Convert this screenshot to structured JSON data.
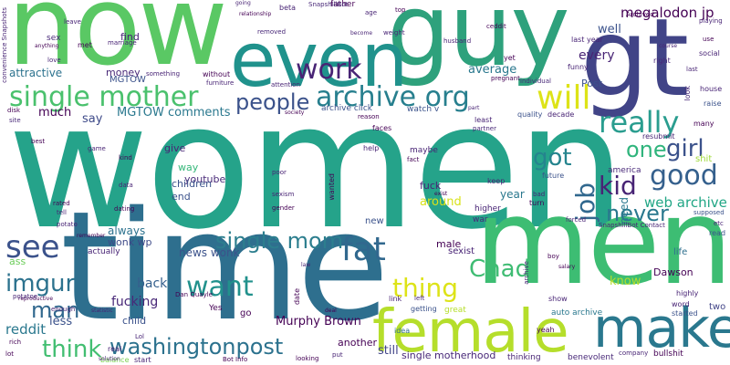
{
  "words": [
    {
      "text": "women",
      "color": "#25a38a"
    },
    {
      "text": "time",
      "color": "#2e6f8e"
    },
    {
      "text": "men",
      "color": "#3dbd73"
    },
    {
      "text": "guy",
      "color": "#2ea17c"
    },
    {
      "text": "now",
      "color": "#5ac864"
    },
    {
      "text": "even",
      "color": "#20928c"
    },
    {
      "text": "gt",
      "color": "#414487"
    },
    {
      "text": "female",
      "color": "#b5de2b"
    },
    {
      "text": "make",
      "color": "#2a788e"
    },
    {
      "text": "single mother",
      "color": "#4ac16d"
    },
    {
      "text": "archive org",
      "color": "#277f8e"
    },
    {
      "text": "work",
      "color": "#482475"
    },
    {
      "text": "will",
      "color": "#dde318"
    },
    {
      "text": "really",
      "color": "#2a9d8f"
    },
    {
      "text": "people",
      "color": "#3b528b"
    },
    {
      "text": "fat",
      "color": "#31688e"
    },
    {
      "text": "see",
      "color": "#3b528b"
    },
    {
      "text": "good",
      "color": "#35608d"
    },
    {
      "text": "single mom",
      "color": "#2c7e8e"
    },
    {
      "text": "thing",
      "color": "#dde318"
    },
    {
      "text": "washingtonpost",
      "color": "#2c728e"
    },
    {
      "text": "want",
      "color": "#21918c"
    },
    {
      "text": "Chad",
      "color": "#3fbc73"
    },
    {
      "text": "girl",
      "color": "#3b528b"
    },
    {
      "text": "one",
      "color": "#2fb47c"
    },
    {
      "text": "job",
      "color": "#31688e"
    },
    {
      "text": "got",
      "color": "#25848e"
    },
    {
      "text": "kid",
      "color": "#482475"
    },
    {
      "text": "never",
      "color": "#2a788e"
    },
    {
      "text": "think",
      "color": "#42be71"
    },
    {
      "text": "man",
      "color": "#31688e"
    },
    {
      "text": "imgur",
      "color": "#2c728e"
    },
    {
      "text": "MGTOW comments",
      "color": "#2a788e"
    },
    {
      "text": "megalodon jp",
      "color": "#440154"
    },
    {
      "text": "Murphy Brown",
      "color": "#440154"
    },
    {
      "text": "web archive",
      "color": "#21a685"
    },
    {
      "text": "fucking",
      "color": "#482878"
    },
    {
      "text": "average",
      "color": "#2a788e"
    },
    {
      "text": "every",
      "color": "#482475"
    },
    {
      "text": "well",
      "color": "#3b528b"
    },
    {
      "text": "back",
      "color": "#35608d"
    },
    {
      "text": "much",
      "color": "#440154"
    },
    {
      "text": "say",
      "color": "#3e4a89"
    },
    {
      "text": "Post",
      "color": "#3b528b"
    },
    {
      "text": "less",
      "color": "#3b528b"
    },
    {
      "text": "reddit",
      "color": "#2a788e"
    },
    {
      "text": "year",
      "color": "#2a788e"
    },
    {
      "text": "fuck",
      "color": "#482475"
    },
    {
      "text": "male",
      "color": "#440154"
    },
    {
      "text": "news wonk",
      "color": "#3b528b"
    },
    {
      "text": "always",
      "color": "#2c728e"
    },
    {
      "text": "still",
      "color": "#414487"
    },
    {
      "text": "single motherhood",
      "color": "#482878"
    },
    {
      "text": "know",
      "color": "#b5de2b"
    },
    {
      "text": "need",
      "color": "#2a788e"
    },
    {
      "text": "around",
      "color": "#d8e219"
    },
    {
      "text": "wonk wp",
      "color": "#3e4a89"
    },
    {
      "text": "attractive",
      "color": "#2c728e"
    },
    {
      "text": "money",
      "color": "#482878"
    },
    {
      "text": "find",
      "color": "#482475"
    },
    {
      "text": "MGTOW",
      "color": "#3b528b"
    },
    {
      "text": "youtube",
      "color": "#482878"
    },
    {
      "text": "end",
      "color": "#3b528b"
    },
    {
      "text": "children",
      "color": "#3b528b"
    },
    {
      "text": "way",
      "color": "#35b779"
    },
    {
      "text": "give",
      "color": "#482475"
    },
    {
      "text": "child",
      "color": "#3b528b"
    },
    {
      "text": "another",
      "color": "#440154"
    },
    {
      "text": "sexist",
      "color": "#482475"
    },
    {
      "text": "ass",
      "color": "#6ccd5a"
    },
    {
      "text": "Dawson",
      "color": "#440154"
    },
    {
      "text": "shit",
      "color": "#9fda3a"
    },
    {
      "text": "america",
      "color": "#482878"
    },
    {
      "text": "watch v",
      "color": "#3b528b"
    },
    {
      "text": "maybe",
      "color": "#482475"
    },
    {
      "text": "Yes",
      "color": "#440154"
    },
    {
      "text": "go",
      "color": "#440154"
    },
    {
      "text": "actually",
      "color": "#482475"
    },
    {
      "text": "new",
      "color": "#3b528b"
    },
    {
      "text": "two",
      "color": "#414487"
    },
    {
      "text": "real",
      "color": "#482475"
    },
    {
      "text": "idea",
      "color": "#2e6f8e"
    },
    {
      "text": "war",
      "color": "#482878"
    },
    {
      "text": "higher",
      "color": "#482475"
    },
    {
      "text": "great",
      "color": "#b5de2b"
    },
    {
      "text": "life",
      "color": "#2e6f8e"
    },
    {
      "text": "balance",
      "color": "#7ad151"
    },
    {
      "text": "start",
      "color": "#482475"
    },
    {
      "text": "bullshit",
      "color": "#440154"
    },
    {
      "text": "auto archive",
      "color": "#2a788e"
    },
    {
      "text": "getting",
      "color": "#3b528b"
    },
    {
      "text": "thinking",
      "color": "#482475"
    },
    {
      "text": "benevolent",
      "color": "#482878"
    },
    {
      "text": "yeah",
      "color": "#440154"
    },
    {
      "text": "link",
      "color": "#482475"
    },
    {
      "text": "left",
      "color": "#482878"
    },
    {
      "text": "show",
      "color": "#482475"
    },
    {
      "text": "started",
      "color": "#3b528b"
    },
    {
      "text": "word",
      "color": "#482475"
    },
    {
      "text": "highly",
      "color": "#482475"
    },
    {
      "text": "read",
      "color": "#3b528b"
    },
    {
      "text": "etc",
      "color": "#482475"
    },
    {
      "text": "supposed",
      "color": "#3b528b"
    },
    {
      "text": "turn",
      "color": "#440154"
    },
    {
      "text": "keep",
      "color": "#482475"
    },
    {
      "text": "future",
      "color": "#3b528b"
    },
    {
      "text": "fact",
      "color": "#440154"
    },
    {
      "text": "help",
      "color": "#482475"
    },
    {
      "text": "faces",
      "color": "#440154"
    },
    {
      "text": "reason",
      "color": "#440154"
    },
    {
      "text": "least",
      "color": "#482475"
    },
    {
      "text": "partner",
      "color": "#482878"
    },
    {
      "text": "quality",
      "color": "#3b528b"
    },
    {
      "text": "decade",
      "color": "#482475"
    },
    {
      "text": "resubmit",
      "color": "#482475"
    },
    {
      "text": "many",
      "color": "#440154"
    },
    {
      "text": "raise",
      "color": "#3b528b"
    },
    {
      "text": "house",
      "color": "#482475"
    },
    {
      "text": "look",
      "color": "#482878"
    },
    {
      "text": "social",
      "color": "#482475"
    },
    {
      "text": "last",
      "color": "#482475"
    },
    {
      "text": "right",
      "color": "#482878"
    },
    {
      "text": "funny",
      "color": "#482475"
    },
    {
      "text": "last year",
      "color": "#482475"
    },
    {
      "text": "pregnant",
      "color": "#440154"
    },
    {
      "text": "individual",
      "color": "#482878"
    },
    {
      "text": "yet",
      "color": "#440154"
    },
    {
      "text": "ceddit",
      "color": "#440154"
    },
    {
      "text": "husband",
      "color": "#482475"
    },
    {
      "text": "top",
      "color": "#440154"
    },
    {
      "text": "age",
      "color": "#482475"
    },
    {
      "text": "father",
      "color": "#440154"
    },
    {
      "text": "SnapshillBot",
      "color": "#482878"
    },
    {
      "text": "beta",
      "color": "#482475"
    },
    {
      "text": "relationship",
      "color": "#440154"
    },
    {
      "text": "removed",
      "color": "#482878"
    },
    {
      "text": "weight",
      "color": "#482475"
    },
    {
      "text": "become",
      "color": "#482475"
    },
    {
      "text": "attention",
      "color": "#482475"
    },
    {
      "text": "without",
      "color": "#440154"
    },
    {
      "text": "furniture",
      "color": "#482475"
    },
    {
      "text": "something",
      "color": "#482475"
    },
    {
      "text": "society",
      "color": "#440154"
    },
    {
      "text": "archive click",
      "color": "#3b528b"
    },
    {
      "text": "marriage",
      "color": "#482475"
    },
    {
      "text": "met",
      "color": "#440154"
    },
    {
      "text": "sex",
      "color": "#482878"
    },
    {
      "text": "leave",
      "color": "#482475"
    },
    {
      "text": "anything",
      "color": "#440154"
    },
    {
      "text": "love",
      "color": "#482475"
    },
    {
      "text": "convenience Snapshots",
      "color": "#482475"
    },
    {
      "text": "site",
      "color": "#482878"
    },
    {
      "text": "best",
      "color": "#440154"
    },
    {
      "text": "game",
      "color": "#482475"
    },
    {
      "text": "kind",
      "color": "#440154"
    },
    {
      "text": "data",
      "color": "#482475"
    },
    {
      "text": "dating",
      "color": "#440154"
    },
    {
      "text": "tell",
      "color": "#482475"
    },
    {
      "text": "potato",
      "color": "#482475"
    },
    {
      "text": "remember",
      "color": "#440154"
    },
    {
      "text": "enough",
      "color": "#482475"
    },
    {
      "text": "reproductive",
      "color": "#440154"
    },
    {
      "text": "potatoe",
      "color": "#482475"
    },
    {
      "text": "rich",
      "color": "#440154"
    },
    {
      "text": "statistic",
      "color": "#482475"
    },
    {
      "text": "Dan Quayle",
      "color": "#440154"
    },
    {
      "text": "sexism",
      "color": "#482475"
    },
    {
      "text": "gender",
      "color": "#440154"
    },
    {
      "text": "poor",
      "color": "#482475"
    },
    {
      "text": "SnapshillBot Contact",
      "color": "#482475"
    },
    {
      "text": "Bot Info",
      "color": "#440154"
    },
    {
      "text": "company",
      "color": "#482475"
    },
    {
      "text": "salary",
      "color": "#440154"
    },
    {
      "text": "solution",
      "color": "#482475"
    },
    {
      "text": "lot",
      "color": "#440154"
    },
    {
      "text": "playing",
      "color": "#482475"
    },
    {
      "text": "use",
      "color": "#440154"
    },
    {
      "text": "course",
      "color": "#482475"
    },
    {
      "text": "Archived",
      "color": "#440154"
    },
    {
      "text": "forced",
      "color": "#482475"
    },
    {
      "text": "exist",
      "color": "#440154"
    },
    {
      "text": "part",
      "color": "#482475"
    },
    {
      "text": "deal",
      "color": "#440154"
    },
    {
      "text": "put",
      "color": "#482475"
    },
    {
      "text": "looking",
      "color": "#440154"
    },
    {
      "text": "archive",
      "color": "#482475"
    },
    {
      "text": "boy",
      "color": "#440154"
    },
    {
      "text": "bad",
      "color": "#482475"
    },
    {
      "text": "date",
      "color": "#440154"
    },
    {
      "text": "Lol",
      "color": "#482475"
    },
    {
      "text": "wanted",
      "color": "#440154"
    },
    {
      "text": "going",
      "color": "#482475"
    },
    {
      "text": "disk",
      "color": "#440154"
    },
    {
      "text": "law",
      "color": "#482475"
    },
    {
      "text": "rated",
      "color": "#440154"
    }
  ]
}
